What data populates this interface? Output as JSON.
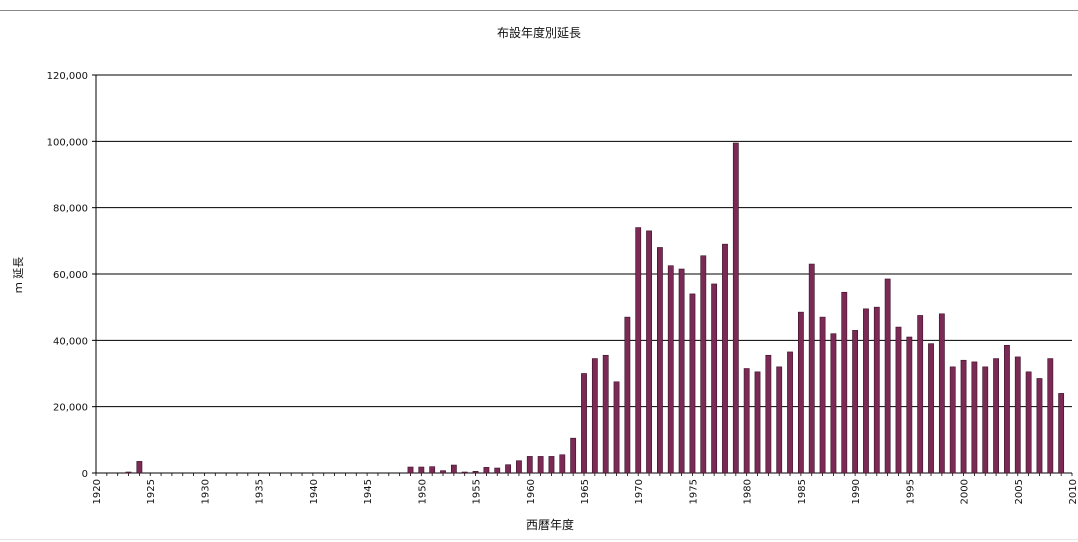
{
  "chart_data": {
    "type": "bar",
    "title": "布設年度別延長",
    "xlabel": "西暦年度",
    "ylabel": "ｍ 延長",
    "ylim": [
      0,
      120000
    ],
    "y_ticks": [
      "0",
      "20,000",
      "40,000",
      "60,000",
      "80,000",
      "100,000",
      "120,000"
    ],
    "y_tick_values": [
      0,
      20000,
      40000,
      60000,
      80000,
      100000,
      120000
    ],
    "x_tick_labels": [
      "1920",
      "1925",
      "1930",
      "1935",
      "1940",
      "1945",
      "1950",
      "1955",
      "1960",
      "1965",
      "1970",
      "1975",
      "1980",
      "1985",
      "1990",
      "1995",
      "2000",
      "2005",
      "2010"
    ],
    "x_range": [
      1920,
      2010
    ],
    "grid": true,
    "bar_color": "#7b2a55",
    "categories": [
      1923,
      1924,
      1949,
      1950,
      1951,
      1952,
      1953,
      1954,
      1955,
      1956,
      1957,
      1958,
      1959,
      1960,
      1961,
      1962,
      1963,
      1964,
      1965,
      1966,
      1967,
      1968,
      1969,
      1970,
      1971,
      1972,
      1973,
      1974,
      1975,
      1976,
      1977,
      1978,
      1979,
      1980,
      1981,
      1982,
      1983,
      1984,
      1985,
      1986,
      1987,
      1988,
      1989,
      1990,
      1991,
      1992,
      1993,
      1994,
      1995,
      1996,
      1997,
      1998,
      1999,
      2000,
      2001,
      2002,
      2003,
      2004,
      2005,
      2006,
      2007,
      2008,
      2009
    ],
    "values": [
      300,
      3500,
      1800,
      1800,
      1900,
      700,
      2400,
      300,
      500,
      1700,
      1500,
      2500,
      3700,
      5000,
      5000,
      5000,
      5500,
      10500,
      30000,
      34500,
      35500,
      27500,
      47000,
      74000,
      73000,
      68000,
      62500,
      61500,
      54000,
      65500,
      57000,
      69000,
      99500,
      31500,
      30500,
      35500,
      32000,
      36500,
      48500,
      63000,
      47000,
      42000,
      54500,
      43000,
      49500,
      50000,
      58500,
      44000,
      41000,
      47500,
      39000,
      48000,
      32000,
      34000,
      33500,
      32000,
      34500,
      38500,
      35000,
      30500,
      28500,
      34500,
      24000
    ]
  }
}
